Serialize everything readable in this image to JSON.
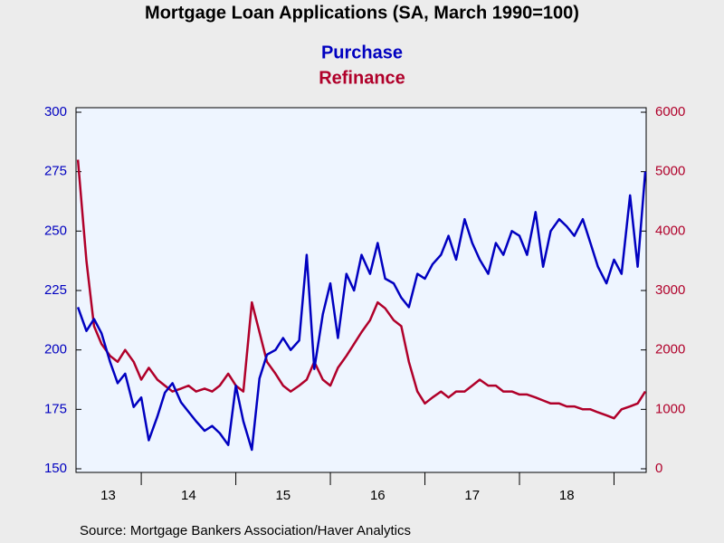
{
  "chart_data": {
    "type": "line",
    "title": "Mortgage Loan Applications (SA, March 1990=100)",
    "source": "Source:  Mortgage Bankers Association/Haver Analytics",
    "x": [
      2013.33,
      2013.42,
      2013.5,
      2013.58,
      2013.67,
      2013.75,
      2013.83,
      2013.92,
      2014.0,
      2014.08,
      2014.17,
      2014.25,
      2014.33,
      2014.42,
      2014.5,
      2014.58,
      2014.67,
      2014.75,
      2014.83,
      2014.92,
      2015.0,
      2015.08,
      2015.17,
      2015.25,
      2015.33,
      2015.42,
      2015.5,
      2015.58,
      2015.67,
      2015.75,
      2015.83,
      2015.92,
      2016.0,
      2016.08,
      2016.17,
      2016.25,
      2016.33,
      2016.42,
      2016.5,
      2016.58,
      2016.67,
      2016.75,
      2016.83,
      2016.92,
      2017.0,
      2017.08,
      2017.17,
      2017.25,
      2017.33,
      2017.42,
      2017.5,
      2017.58,
      2017.67,
      2017.75,
      2017.83,
      2017.92,
      2018.0,
      2018.08,
      2018.17,
      2018.25,
      2018.33,
      2018.42,
      2018.5,
      2018.58,
      2018.67,
      2018.75,
      2018.83,
      2018.92,
      2019.0,
      2019.08,
      2019.17,
      2019.25,
      2019.33
    ],
    "series": [
      {
        "name": "Purchase",
        "color": "#0000c0",
        "axis": "y",
        "values": [
          218,
          208,
          213,
          207,
          195,
          186,
          190,
          176,
          180,
          162,
          172,
          182,
          186,
          178,
          174,
          170,
          166,
          168,
          165,
          160,
          185,
          170,
          158,
          188,
          198,
          200,
          205,
          200,
          204,
          240,
          192,
          215,
          228,
          205,
          232,
          225,
          240,
          232,
          245,
          230,
          228,
          222,
          218,
          232,
          230,
          236,
          240,
          248,
          238,
          255,
          245,
          238,
          232,
          245,
          240,
          250,
          248,
          240,
          258,
          235,
          250,
          255,
          252,
          248,
          255,
          245,
          235,
          228,
          238,
          232,
          265,
          235,
          275
        ]
      },
      {
        "name": "Refinance",
        "color": "#b0002a",
        "axis": "y2",
        "values": [
          5200,
          3500,
          2400,
          2100,
          1900,
          1800,
          2000,
          1800,
          1500,
          1700,
          1500,
          1400,
          1300,
          1350,
          1400,
          1300,
          1350,
          1300,
          1400,
          1600,
          1400,
          1300,
          2800,
          2300,
          1800,
          1600,
          1400,
          1300,
          1400,
          1500,
          1800,
          1500,
          1400,
          1700,
          1900,
          2100,
          2300,
          2500,
          2800,
          2700,
          2500,
          2400,
          1800,
          1300,
          1100,
          1200,
          1300,
          1200,
          1300,
          1300,
          1400,
          1500,
          1400,
          1400,
          1300,
          1300,
          1250,
          1250,
          1200,
          1150,
          1100,
          1100,
          1050,
          1050,
          1000,
          1000,
          950,
          900,
          850,
          1000,
          1050,
          1100,
          1300
        ]
      }
    ],
    "xlim": [
      2013.31,
      2019.34
    ],
    "xticks": [
      {
        "value": 2013.65,
        "label": "13"
      },
      {
        "value": 2014.5,
        "label": "14"
      },
      {
        "value": 2015.5,
        "label": "15"
      },
      {
        "value": 2016.5,
        "label": "16"
      },
      {
        "value": 2017.5,
        "label": "17"
      },
      {
        "value": 2018.5,
        "label": "18"
      }
    ],
    "ylim": [
      150,
      300
    ],
    "yticks": [
      150,
      175,
      200,
      225,
      250,
      275,
      300
    ],
    "y2lim": [
      0,
      6000
    ],
    "y2ticks": [
      0,
      1000,
      2000,
      3000,
      4000,
      5000,
      6000
    ]
  }
}
